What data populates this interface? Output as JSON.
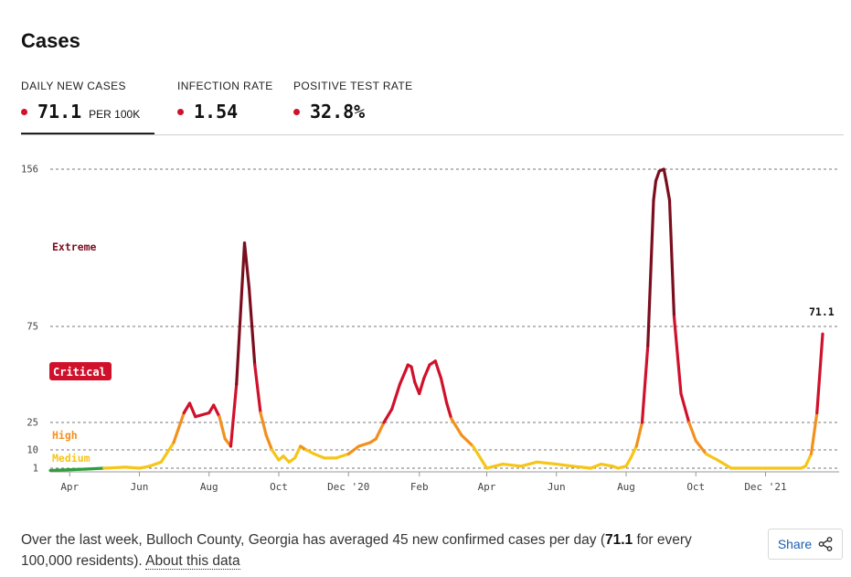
{
  "title": "Cases",
  "tabs": [
    {
      "label": "DAILY NEW CASES",
      "value": "71.1",
      "unit": "PER 100K",
      "active": true
    },
    {
      "label": "INFECTION RATE",
      "value": "1.54"
    },
    {
      "label": "POSITIVE TEST RATE",
      "value": "32.8%"
    }
  ],
  "colors": {
    "accent_dot": "#d0112b",
    "extreme": "#7a0e1f",
    "critical": "#d0112b",
    "high": "#f2901e",
    "medium": "#f5c518",
    "low": "#2e9e3e"
  },
  "chart_data": {
    "type": "line",
    "title": "",
    "xlabel": "",
    "ylabel": "",
    "x_ticks": [
      "Apr",
      "Jun",
      "Aug",
      "Oct",
      "Dec '20",
      "Feb",
      "Apr",
      "Jun",
      "Aug",
      "Oct",
      "Dec '21"
    ],
    "y_ticks": [
      1,
      10,
      25,
      75,
      156
    ],
    "ylim": [
      0,
      156
    ],
    "risk_levels": [
      {
        "name": "Extreme",
        "min": 75
      },
      {
        "name": "Critical",
        "min": 25
      },
      {
        "name": "High",
        "min": 10
      },
      {
        "name": "Medium",
        "min": 1
      }
    ],
    "last_value_label": "71.1",
    "series": [
      {
        "x": [
          "2020-03-15",
          "2020-04-15",
          "2020-05-01",
          "2020-05-20",
          "2020-06-01",
          "2020-06-10",
          "2020-06-20",
          "2020-07-01",
          "2020-07-10",
          "2020-07-15",
          "2020-07-20",
          "2020-08-01",
          "2020-08-05",
          "2020-08-10",
          "2020-08-15",
          "2020-08-20",
          "2020-08-25",
          "2020-09-01",
          "2020-09-05",
          "2020-09-10",
          "2020-09-15",
          "2020-09-20",
          "2020-09-25",
          "2020-10-01",
          "2020-10-05",
          "2020-10-10",
          "2020-10-15",
          "2020-10-20",
          "2020-10-25",
          "2020-11-01",
          "2020-11-10",
          "2020-11-20",
          "2020-12-01",
          "2020-12-10",
          "2020-12-20",
          "2020-12-25",
          "2021-01-01",
          "2021-01-08",
          "2021-01-15",
          "2021-01-20",
          "2021-01-22",
          "2021-01-25",
          "2021-01-28",
          "2021-02-01",
          "2021-02-05",
          "2021-02-10",
          "2021-02-15",
          "2021-02-20",
          "2021-02-25",
          "2021-03-01",
          "2021-03-10",
          "2021-03-20",
          "2021-04-01",
          "2021-04-15",
          "2021-05-01",
          "2021-05-15",
          "2021-06-01",
          "2021-06-15",
          "2021-07-01",
          "2021-07-10",
          "2021-07-20",
          "2021-07-25",
          "2021-08-01",
          "2021-08-05",
          "2021-08-10",
          "2021-08-15",
          "2021-08-20",
          "2021-08-25",
          "2021-08-27",
          "2021-08-30",
          "2021-09-03",
          "2021-09-05",
          "2021-09-08",
          "2021-09-12",
          "2021-09-18",
          "2021-09-25",
          "2021-10-01",
          "2021-10-10",
          "2021-10-20",
          "2021-11-01",
          "2021-11-10",
          "2021-11-20",
          "2021-12-01",
          "2021-12-10",
          "2021-12-20",
          "2022-01-01",
          "2022-01-05",
          "2022-01-10",
          "2022-01-15",
          "2022-01-20"
        ],
        "y": [
          0.5,
          0.8,
          1,
          1.5,
          1,
          2,
          4,
          14,
          30,
          35,
          28,
          30,
          34,
          28,
          16,
          12,
          45,
          118,
          95,
          55,
          30,
          18,
          10,
          5,
          7,
          4,
          6,
          12,
          10,
          8,
          6,
          6,
          8,
          12,
          14,
          16,
          25,
          32,
          45,
          52,
          55,
          54,
          46,
          40,
          48,
          55,
          57,
          48,
          35,
          27,
          18,
          12,
          1,
          3,
          2,
          4,
          3,
          2,
          1,
          3,
          2,
          1,
          2,
          6,
          12,
          25,
          65,
          140,
          150,
          155,
          156,
          150,
          140,
          80,
          40,
          25,
          15,
          8,
          5,
          1,
          1,
          1,
          1,
          1,
          1,
          1,
          2,
          8,
          30,
          71.1
        ]
      }
    ]
  }
}
